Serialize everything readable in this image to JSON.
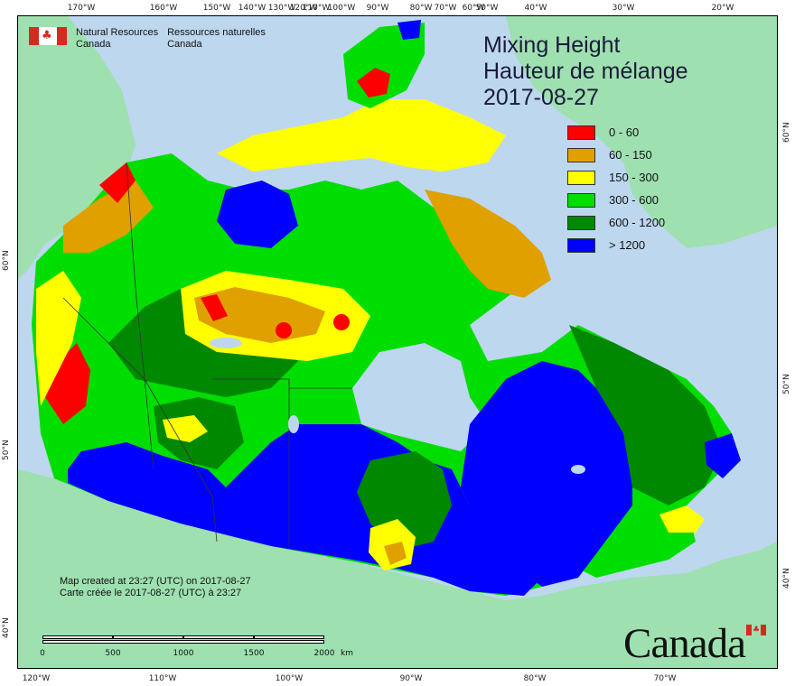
{
  "agency": {
    "en_line1": "Natural Resources",
    "en_line2": "Canada",
    "fr_line1": "Ressources naturelles",
    "fr_line2": "Canada"
  },
  "title": {
    "en": "Mixing Height",
    "fr": "Hauteur de mélange",
    "date": "2017-08-27"
  },
  "legend": [
    {
      "label": "0 - 60",
      "color": "#ff0000"
    },
    {
      "label": "60 - 150",
      "color": "#e0a000"
    },
    {
      "label": "150 - 300",
      "color": "#ffff00"
    },
    {
      "label": "300 - 600",
      "color": "#00dd00"
    },
    {
      "label": "600 - 1200",
      "color": "#008800"
    },
    {
      "label": "> 1200",
      "color": "#0000ff"
    }
  ],
  "created": {
    "en": "Map created at 23:27 (UTC) on 2017-08-27",
    "fr": "Carte créée le 2017-08-27 (UTC) à 23:27"
  },
  "scale": {
    "labels": [
      "0",
      "500",
      "1000",
      "1500",
      "2000"
    ],
    "unit": "km"
  },
  "wordmark": "Canada",
  "graticule": {
    "top": [
      "170°W",
      "160°W",
      "150°W",
      "140°W",
      "130°W",
      "120°W",
      "110°W",
      "100°W",
      "90°W",
      "80°W",
      "70°W",
      "60°W",
      "50°W",
      "40°W",
      "30°W",
      "20°W"
    ],
    "bottom": [
      "120°W",
      "110°W",
      "100°W",
      "90°W",
      "80°W",
      "70°W"
    ],
    "left": [
      "60°N",
      "50°N",
      "40°N"
    ],
    "right": [
      "60°N",
      "50°N",
      "40°N"
    ]
  },
  "colors": {
    "ocean": "#bdd7ee",
    "land": "#9ee0b0",
    "boundary": "#333333"
  }
}
